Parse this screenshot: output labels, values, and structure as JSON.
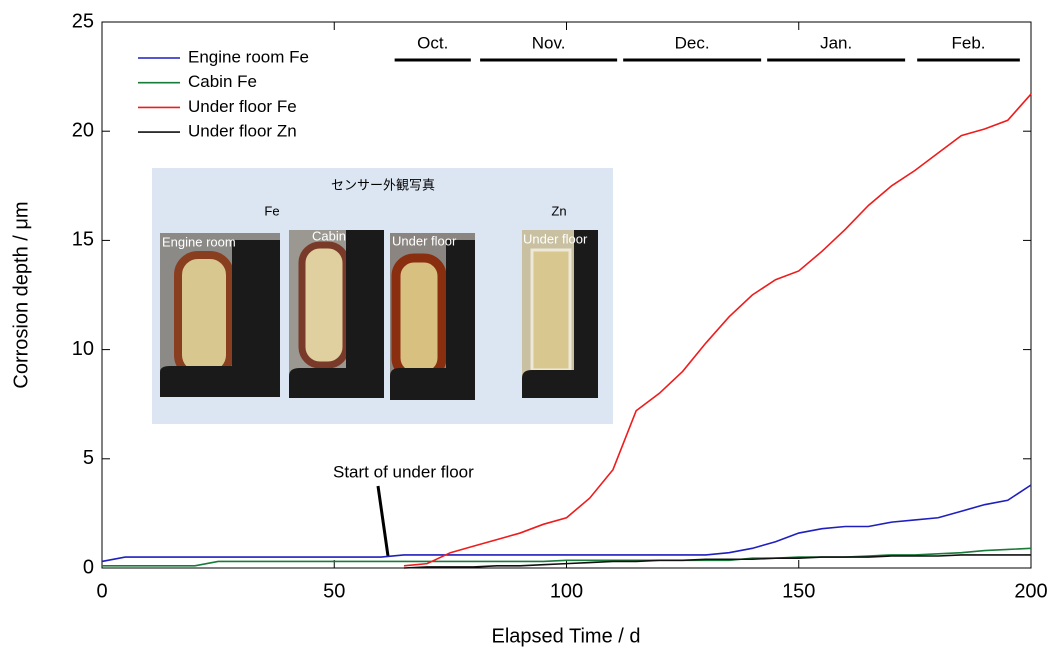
{
  "chart_data": {
    "type": "line",
    "xlabel": "Elapsed Time / d",
    "ylabel": "Corrosion depth / μm",
    "xlim": [
      0,
      200
    ],
    "ylim": [
      0,
      25
    ],
    "xticks": [
      0,
      50,
      100,
      150,
      200
    ],
    "yticks": [
      0,
      5,
      10,
      15,
      20,
      25
    ],
    "legend": "upper left",
    "x": [
      0,
      5,
      10,
      15,
      20,
      25,
      30,
      35,
      40,
      45,
      50,
      55,
      60,
      65,
      70,
      75,
      80,
      85,
      90,
      95,
      100,
      105,
      110,
      115,
      120,
      125,
      130,
      135,
      140,
      145,
      150,
      155,
      160,
      165,
      170,
      175,
      180,
      185,
      190,
      195,
      200
    ],
    "series": [
      {
        "name": "Engine room Fe",
        "color": "#1f1fbf",
        "values": [
          0.3,
          0.5,
          0.5,
          0.5,
          0.5,
          0.5,
          0.5,
          0.5,
          0.5,
          0.5,
          0.5,
          0.5,
          0.5,
          0.6,
          0.6,
          0.6,
          0.6,
          0.6,
          0.6,
          0.6,
          0.6,
          0.6,
          0.6,
          0.6,
          0.6,
          0.6,
          0.6,
          0.7,
          0.9,
          1.2,
          1.6,
          1.8,
          1.9,
          1.9,
          2.1,
          2.2,
          2.3,
          2.6,
          2.9,
          3.1,
          3.8
        ]
      },
      {
        "name": "Cabin Fe",
        "color": "#1a7a3a",
        "values": [
          0.1,
          0.1,
          0.1,
          0.1,
          0.1,
          0.3,
          0.3,
          0.3,
          0.3,
          0.3,
          0.3,
          0.3,
          0.3,
          0.3,
          0.3,
          0.3,
          0.3,
          0.3,
          0.3,
          0.3,
          0.35,
          0.35,
          0.35,
          0.35,
          0.35,
          0.35,
          0.35,
          0.35,
          0.45,
          0.45,
          0.5,
          0.5,
          0.5,
          0.55,
          0.6,
          0.6,
          0.65,
          0.7,
          0.8,
          0.85,
          0.9
        ]
      },
      {
        "name": "Under floor Fe",
        "color": "#ee1c1c",
        "values": [
          null,
          null,
          null,
          null,
          null,
          null,
          null,
          null,
          null,
          null,
          null,
          null,
          null,
          0.1,
          0.2,
          0.7,
          1.0,
          1.3,
          1.6,
          2.0,
          2.3,
          3.2,
          4.5,
          7.2,
          8.0,
          9.0,
          10.3,
          11.5,
          12.5,
          13.2,
          13.6,
          14.5,
          15.5,
          16.6,
          17.5,
          18.2,
          19.0,
          19.8,
          20.1,
          20.5,
          21.7
        ]
      },
      {
        "name": "Under floor Zn",
        "color": "#111111",
        "values": [
          null,
          null,
          null,
          null,
          null,
          null,
          null,
          null,
          null,
          null,
          null,
          null,
          null,
          0,
          0.05,
          0.05,
          0.05,
          0.1,
          0.1,
          0.15,
          0.2,
          0.25,
          0.3,
          0.3,
          0.35,
          0.35,
          0.4,
          0.4,
          0.4,
          0.45,
          0.45,
          0.5,
          0.5,
          0.5,
          0.55,
          0.55,
          0.55,
          0.6,
          0.6,
          0.6,
          0.6
        ]
      }
    ],
    "months": [
      {
        "label": "Oct.",
        "start": 63,
        "end": 79.4
      },
      {
        "label": "Nov.",
        "start": 81.4,
        "end": 110.9
      },
      {
        "label": "Dec.",
        "start": 112.2,
        "end": 141.9
      },
      {
        "label": "Jan.",
        "start": 143.2,
        "end": 172.9
      },
      {
        "label": "Feb.",
        "start": 175.5,
        "end": 197.6
      }
    ],
    "annotation": "Start of under floor",
    "inset": {
      "title": "センサー外観写真",
      "groups": [
        "Fe",
        "Zn"
      ],
      "photos": [
        "Engine room",
        "Cabin",
        "Under floor",
        "Under floor"
      ]
    }
  }
}
